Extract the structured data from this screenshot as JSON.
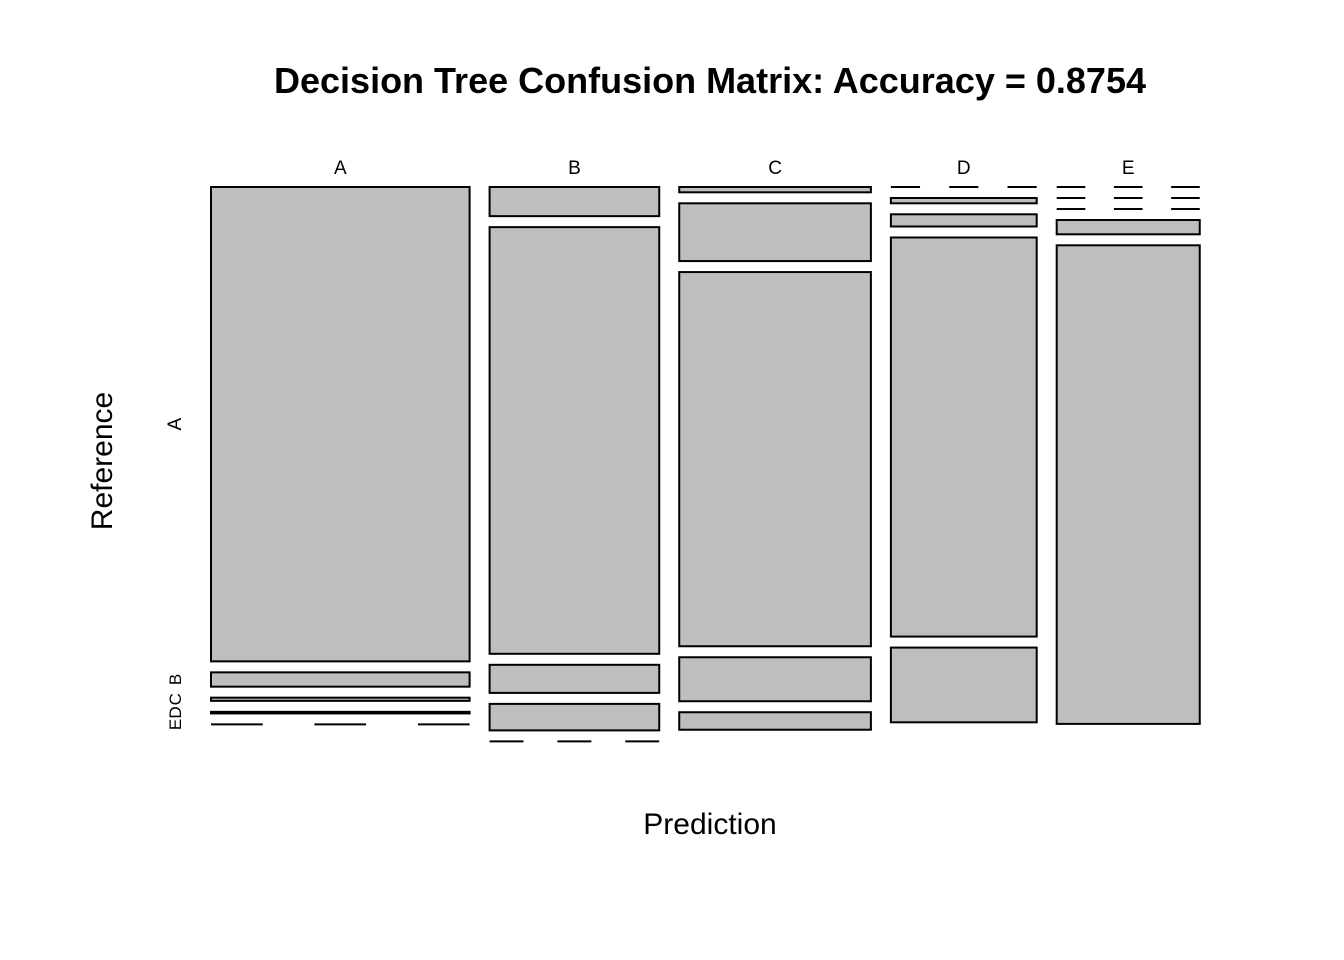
{
  "chart_data": {
    "type": "mosaic",
    "title": "Decision Tree Confusion Matrix: Accuracy = 0.8754",
    "xlabel": "Prediction",
    "ylabel": "Reference",
    "prediction_categories": [
      "A",
      "B",
      "C",
      "D",
      "E"
    ],
    "reference_categories": [
      "A",
      "B",
      "C",
      "D",
      "E"
    ],
    "column_widths": [
      0.282,
      0.185,
      0.209,
      0.159,
      0.156
    ],
    "series": [
      {
        "prediction": "A",
        "reference_proportions": {
          "A": 0.895,
          "B": 0.027,
          "C": 0.006,
          "D": 0.003,
          "E": 0.0
        }
      },
      {
        "prediction": "B",
        "reference_proportions": {
          "A": 0.055,
          "B": 0.805,
          "C": 0.053,
          "D": 0.05,
          "E": 0.0
        }
      },
      {
        "prediction": "C",
        "reference_proportions": {
          "A": 0.01,
          "B": 0.109,
          "C": 0.706,
          "D": 0.083,
          "E": 0.033
        }
      },
      {
        "prediction": "D",
        "reference_proportions": {
          "A": 0.0,
          "B": 0.01,
          "C": 0.023,
          "D": 0.753,
          "E": 0.141
        }
      },
      {
        "prediction": "E",
        "reference_proportions": {
          "A": 0.0,
          "B": 0.0,
          "C": 0.0,
          "D": 0.027,
          "E": 0.903
        }
      }
    ]
  }
}
